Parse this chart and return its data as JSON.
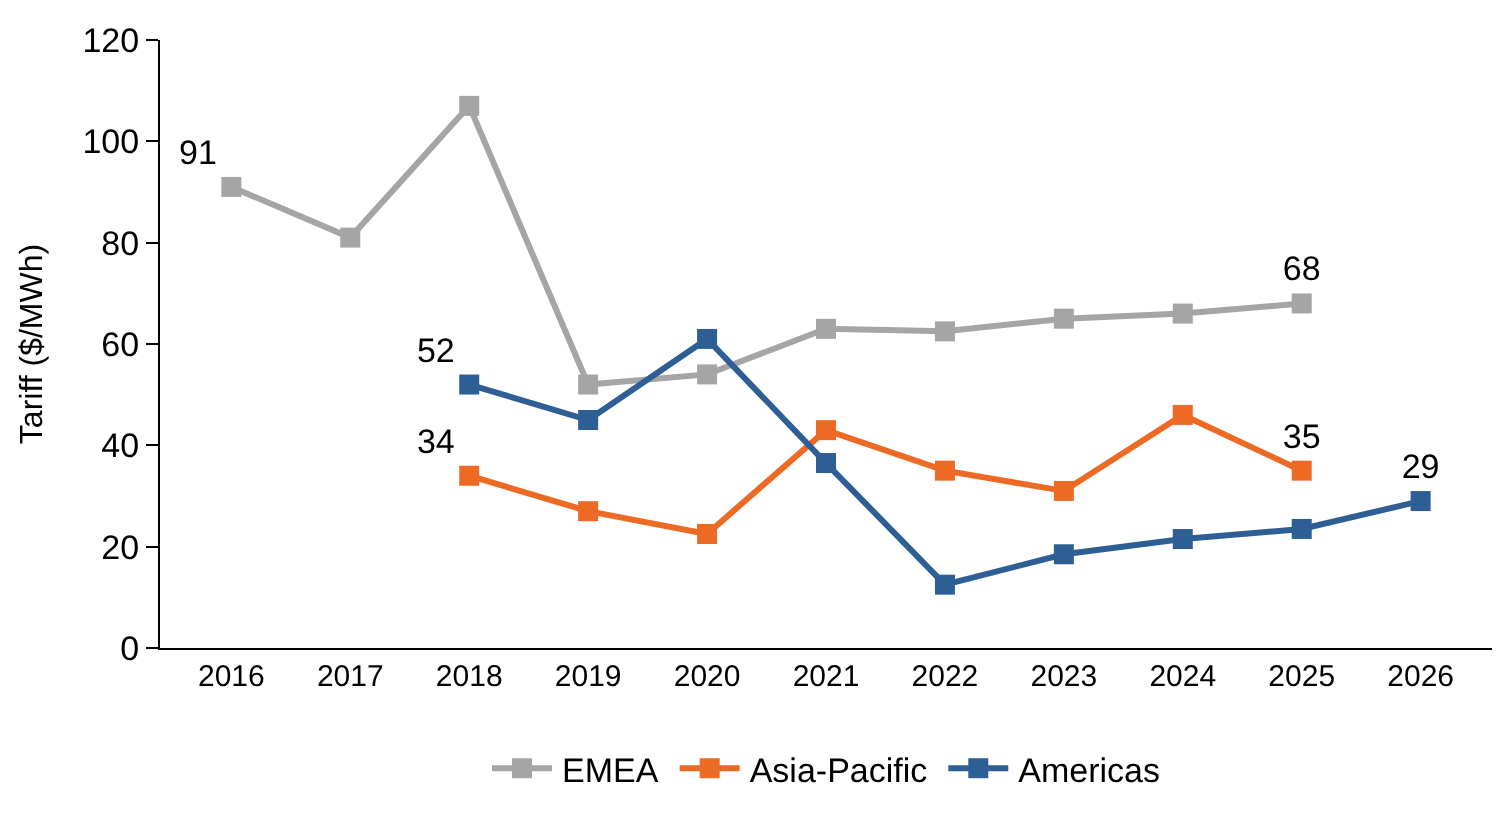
{
  "chart_data": {
    "type": "line",
    "ylabel": "Tariff ($/MWh)",
    "categories": [
      "2016",
      "2017",
      "2018",
      "2019",
      "2020",
      "2021",
      "2022",
      "2023",
      "2024",
      "2025",
      "2026"
    ],
    "series": [
      {
        "name": "EMEA",
        "color": "#a5a5a5",
        "values": [
          91,
          81,
          107,
          52,
          54,
          63,
          62.5,
          65,
          66,
          68,
          null
        ],
        "value_labels": [
          "91",
          null,
          null,
          null,
          null,
          null,
          null,
          null,
          null,
          "68",
          null
        ]
      },
      {
        "name": "Asia-Pacific",
        "color": "#ed6a25",
        "values": [
          null,
          null,
          34,
          27,
          22.5,
          43,
          35,
          31,
          46,
          35,
          null
        ],
        "value_labels": [
          null,
          null,
          "34",
          null,
          null,
          null,
          null,
          null,
          null,
          "35",
          null
        ]
      },
      {
        "name": "Americas",
        "color": "#2e5f94",
        "values": [
          null,
          null,
          52,
          45,
          61,
          36.5,
          12.5,
          18.5,
          21.5,
          23.5,
          29
        ],
        "value_labels": [
          null,
          null,
          "52",
          null,
          null,
          null,
          null,
          null,
          null,
          null,
          "29"
        ]
      }
    ],
    "ylim": [
      0,
      120
    ],
    "yticks": [
      0,
      20,
      40,
      60,
      80,
      100,
      120
    ],
    "legend": "bottom",
    "marker": "square",
    "line_style": "solid"
  }
}
